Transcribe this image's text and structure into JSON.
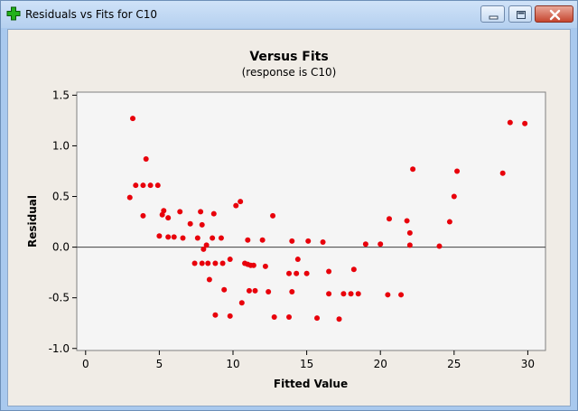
{
  "window": {
    "title": "Residuals vs Fits for C10",
    "icon": "minitab-plus-icon",
    "buttons": [
      "minimize",
      "maximize",
      "close"
    ]
  },
  "colors": {
    "point": "#e8000b",
    "plot_background": "#f5f5f5",
    "client_background": "#f0ece6",
    "titlebar": "#b5d0ef"
  },
  "chart_data": {
    "type": "scatter",
    "title": "Versus Fits",
    "subtitle": "(response is C10)",
    "xlabel": "Fitted Value",
    "ylabel": "Residual",
    "xlim": [
      -0.6,
      31.2
    ],
    "ylim": [
      -1.02,
      1.53
    ],
    "xticks": [
      0,
      5,
      10,
      15,
      20,
      25,
      30
    ],
    "yticks": [
      -1.0,
      -0.5,
      0.0,
      0.5,
      1.0,
      1.5
    ],
    "xtick_labels": [
      "0",
      "5",
      "10",
      "15",
      "20",
      "25",
      "30"
    ],
    "ytick_labels": [
      "-1.0",
      "-0.5",
      "0.0",
      "0.5",
      "1.0",
      "1.5"
    ],
    "reference_line": 0,
    "grid": false,
    "points": [
      [
        3.2,
        1.27
      ],
      [
        3.0,
        0.49
      ],
      [
        3.4,
        0.61
      ],
      [
        4.1,
        0.87
      ],
      [
        3.9,
        0.61
      ],
      [
        4.4,
        0.61
      ],
      [
        4.9,
        0.61
      ],
      [
        3.9,
        0.31
      ],
      [
        5.3,
        0.36
      ],
      [
        5.2,
        0.32
      ],
      [
        5.6,
        0.29
      ],
      [
        5.0,
        0.11
      ],
      [
        5.6,
        0.1
      ],
      [
        6.0,
        0.1
      ],
      [
        6.4,
        0.35
      ],
      [
        7.1,
        0.23
      ],
      [
        6.6,
        0.09
      ],
      [
        7.6,
        0.09
      ],
      [
        7.8,
        0.35
      ],
      [
        7.9,
        0.22
      ],
      [
        8.7,
        0.33
      ],
      [
        8.6,
        0.09
      ],
      [
        9.2,
        0.09
      ],
      [
        8.2,
        0.02
      ],
      [
        8.0,
        -0.02
      ],
      [
        7.4,
        -0.16
      ],
      [
        7.9,
        -0.16
      ],
      [
        8.3,
        -0.16
      ],
      [
        8.8,
        -0.16
      ],
      [
        9.3,
        -0.16
      ],
      [
        9.8,
        -0.12
      ],
      [
        8.4,
        -0.32
      ],
      [
        9.4,
        -0.42
      ],
      [
        8.8,
        -0.67
      ],
      [
        9.8,
        -0.68
      ],
      [
        10.2,
        0.41
      ],
      [
        10.5,
        0.45
      ],
      [
        11.0,
        0.07
      ],
      [
        10.8,
        -0.16
      ],
      [
        11.0,
        -0.17
      ],
      [
        11.2,
        -0.18
      ],
      [
        11.4,
        -0.18
      ],
      [
        12.2,
        -0.19
      ],
      [
        11.1,
        -0.43
      ],
      [
        11.5,
        -0.43
      ],
      [
        10.6,
        -0.55
      ],
      [
        12.0,
        0.07
      ],
      [
        12.7,
        0.31
      ],
      [
        12.4,
        -0.44
      ],
      [
        12.8,
        -0.69
      ],
      [
        13.8,
        -0.69
      ],
      [
        14.0,
        0.06
      ],
      [
        14.4,
        -0.12
      ],
      [
        13.8,
        -0.26
      ],
      [
        14.3,
        -0.26
      ],
      [
        15.1,
        0.06
      ],
      [
        15.0,
        -0.26
      ],
      [
        14.0,
        -0.44
      ],
      [
        15.7,
        -0.7
      ],
      [
        16.1,
        0.05
      ],
      [
        16.5,
        -0.24
      ],
      [
        16.5,
        -0.46
      ],
      [
        17.2,
        -0.71
      ],
      [
        17.5,
        -0.46
      ],
      [
        18.0,
        -0.46
      ],
      [
        18.2,
        -0.22
      ],
      [
        18.5,
        -0.46
      ],
      [
        19.0,
        0.03
      ],
      [
        20.0,
        0.03
      ],
      [
        20.6,
        0.28
      ],
      [
        20.5,
        -0.47
      ],
      [
        21.4,
        -0.47
      ],
      [
        21.8,
        0.26
      ],
      [
        22.0,
        0.14
      ],
      [
        22.0,
        0.02
      ],
      [
        22.2,
        0.77
      ],
      [
        24.0,
        0.01
      ],
      [
        24.7,
        0.25
      ],
      [
        25.0,
        0.5
      ],
      [
        25.2,
        0.75
      ],
      [
        28.3,
        0.73
      ],
      [
        28.8,
        1.23
      ],
      [
        29.8,
        1.22
      ]
    ]
  }
}
